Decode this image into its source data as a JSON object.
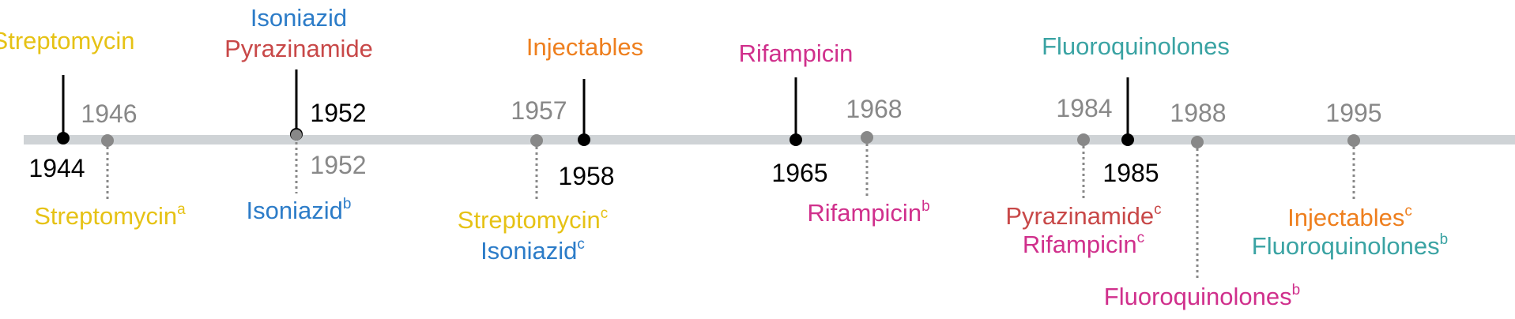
{
  "colors": {
    "axis": "#CFD3D6",
    "black_marker": "#000000",
    "gray_marker": "#888888",
    "streptomycin": "#E6C215",
    "isoniazid": "#2C7CC8",
    "pyrazinamide": "#C84848",
    "injectables": "#EE7F1E",
    "rifampicin": "#D0308C",
    "fluoroquinolones": "#3AA3A3"
  },
  "introductions": [
    {
      "year": "1944",
      "drugs": [
        {
          "name": "Streptomycin",
          "color_key": "streptomycin"
        }
      ]
    },
    {
      "year": "1952",
      "drugs": [
        {
          "name": "Isoniazid",
          "color_key": "isoniazid"
        },
        {
          "name": "Pyrazinamide",
          "color_key": "pyrazinamide"
        }
      ]
    },
    {
      "year": "1958",
      "drugs": [
        {
          "name": "Injectables",
          "color_key": "injectables"
        }
      ]
    },
    {
      "year": "1965",
      "drugs": [
        {
          "name": "Rifampicin",
          "color_key": "rifampicin"
        }
      ]
    },
    {
      "year": "1985",
      "drugs": [
        {
          "name": "Fluoroquinolones",
          "color_key": "fluoroquinolones"
        }
      ]
    }
  ],
  "resistance": [
    {
      "year": "1946",
      "drugs": [
        {
          "name": "Streptomycin",
          "sup": "a",
          "color_key": "streptomycin"
        }
      ]
    },
    {
      "year": "1952",
      "drugs": [
        {
          "name": "Isoniazid",
          "sup": "b",
          "color_key": "isoniazid"
        }
      ]
    },
    {
      "year": "1957",
      "drugs": [
        {
          "name": "Streptomycin",
          "sup": "c",
          "color_key": "streptomycin"
        },
        {
          "name": "Isoniazid",
          "sup": "c",
          "color_key": "isoniazid"
        }
      ]
    },
    {
      "year": "1968",
      "drugs": [
        {
          "name": "Rifampicin",
          "sup": "b",
          "color_key": "rifampicin"
        }
      ]
    },
    {
      "year": "1984",
      "drugs": [
        {
          "name": "Pyrazinamide",
          "sup": "c",
          "color_key": "pyrazinamide"
        },
        {
          "name": "Rifampicin",
          "sup": "c",
          "color_key": "rifampicin"
        }
      ]
    },
    {
      "year": "1988",
      "drugs": [
        {
          "name": "Fluoroquinolones",
          "sup": "b",
          "color_key": "fluoroquinolones"
        }
      ]
    },
    {
      "year": "1995",
      "drugs": [
        {
          "name": "Injectables",
          "sup": "c",
          "color_key": "injectables"
        },
        {
          "name": "Fluoroquinolones",
          "sup": "b",
          "color_key": "fluoroquinolones"
        }
      ]
    }
  ]
}
